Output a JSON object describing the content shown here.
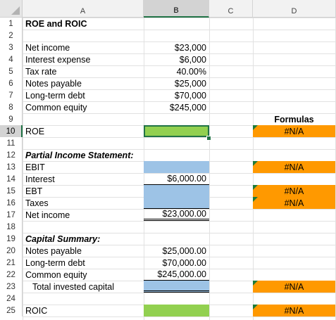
{
  "columns": [
    "A",
    "B",
    "C",
    "D"
  ],
  "rows": [
    "1",
    "2",
    "3",
    "4",
    "5",
    "6",
    "7",
    "8",
    "9",
    "10",
    "11",
    "12",
    "13",
    "14",
    "15",
    "16",
    "17",
    "18",
    "19",
    "20",
    "21",
    "22",
    "23",
    "24",
    "25"
  ],
  "cells": {
    "A1": "ROE and ROIC",
    "A3": "Net income",
    "A4": "Interest expense",
    "A5": "Tax rate",
    "A6": "Notes payable",
    "A7": "Long-term debt",
    "A8": "Common equity",
    "B3": "$23,000",
    "B4": "$6,000",
    "B5": "40.00%",
    "B6": "$25,000",
    "B7": "$70,000",
    "B8": "$245,000",
    "D9": "Formulas",
    "A10": "ROE",
    "D10": "#N/A",
    "A12": "Partial Income Statement:",
    "A13": "EBIT",
    "D13": "#N/A",
    "A14": "Interest",
    "B14": "$6,000.00",
    "A15": "EBT",
    "D15": "#N/A",
    "A16": "Taxes",
    "D16": "#N/A",
    "A17": "Net income",
    "B17": "$23,000.00",
    "A19": "Capital Summary:",
    "A20": "Notes payable",
    "B20": "$25,000.00",
    "A21": "Long-term debt",
    "B21": "$70,000.00",
    "A22": "Common equity",
    "B22": "$245,000.00",
    "A23": "Total invested capital",
    "D23": "#N/A",
    "A25": "ROIC",
    "D25": "#N/A"
  },
  "selected_cell": "B10",
  "fill_colors": {
    "input_blue": "#9dc3e6",
    "answer_green": "#92d050",
    "formula_orange": "#ff9900",
    "selection": "#217346"
  }
}
